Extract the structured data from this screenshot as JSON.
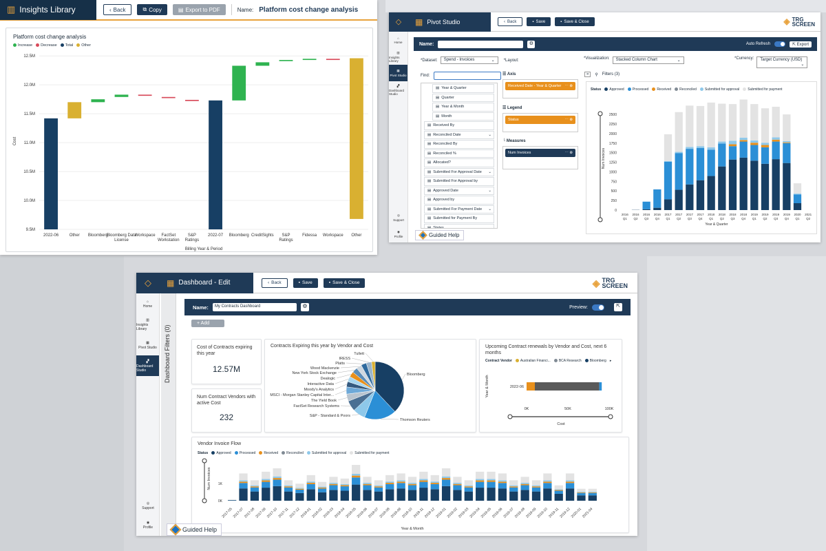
{
  "background": {
    "color": "#d6d8dc"
  },
  "insights": {
    "app_title": "Insights Library",
    "back": "Back",
    "copy": "Copy",
    "export_pdf": "Export to PDF",
    "name_label": "Name:",
    "name_value": "Platform cost change analysis",
    "chart_title": "Platform cost change analysis",
    "legend": [
      {
        "label": "Increase",
        "color": "#2fb350"
      },
      {
        "label": "Decrease",
        "color": "#d84a5a"
      },
      {
        "label": "Total",
        "color": "#173f64"
      },
      {
        "label": "Other",
        "color": "#d9b031"
      }
    ],
    "ylabel": "Cost",
    "xlabel": "Billing Year & Period"
  },
  "chart_data": [
    {
      "type": "bar",
      "title": "Platform cost change analysis",
      "subtitle": "waterfall",
      "xlabel": "Billing Year & Period",
      "ylabel": "Cost",
      "yticks": [
        "9.5M",
        "10.0M",
        "10.5M",
        "11.0M",
        "11.5M",
        "12.0M",
        "12.5M"
      ],
      "ylim": [
        9.5,
        12.55
      ],
      "categories": [
        "2022-06",
        "Other",
        "Bloomberg",
        "Bloomberg Data License",
        "Workspace",
        "FactSet Workstation",
        "S&P Ratings",
        "2022-07",
        "Bloomberg",
        "CreditSights",
        "S&P Ratings",
        "Fidessa",
        "Workspace",
        "Other"
      ],
      "kinds": [
        "total",
        "other",
        "increase",
        "increase",
        "decrease",
        "decrease",
        "decrease",
        "total",
        "increase",
        "increase",
        "increase",
        "increase",
        "decrease",
        "other"
      ],
      "ranges": [
        [
          9.5,
          11.42
        ],
        [
          11.42,
          11.7
        ],
        [
          11.7,
          11.75
        ],
        [
          11.79,
          11.83
        ],
        [
          11.81,
          11.83
        ],
        [
          11.77,
          11.79
        ],
        [
          11.72,
          11.74
        ],
        [
          9.5,
          11.73
        ],
        [
          11.73,
          12.33
        ],
        [
          12.33,
          12.39
        ],
        [
          12.41,
          12.43
        ],
        [
          12.43,
          12.45
        ],
        [
          12.43,
          12.45
        ],
        [
          9.68,
          12.46
        ]
      ]
    },
    {
      "type": "bar",
      "title": "",
      "xlabel": "Year & Quarter",
      "ylabel": "Num Invoices",
      "yticks": [
        "0",
        "250",
        "500",
        "750",
        "1000",
        "1250",
        "1500",
        "1750",
        "2000",
        "2250",
        "2500"
      ],
      "ylim": [
        0,
        2700
      ],
      "categories": [
        "2016 Q1",
        "2016 Q2",
        "2016 Q3",
        "2016 Q4",
        "2017 Q1",
        "2017 Q2",
        "2017 Q3",
        "2017 Q4",
        "2018 Q1",
        "2018 Q2",
        "2018 Q3",
        "2018 Q4",
        "2019 Q1",
        "2019 Q2",
        "2019 Q3",
        "2019 Q4",
        "2020 Q1",
        "2021 Q2"
      ],
      "series": [
        {
          "name": "Approved",
          "color": "#173f64",
          "values": [
            0,
            5,
            20,
            60,
            280,
            530,
            670,
            780,
            890,
            1140,
            1320,
            1370,
            1290,
            1210,
            1330,
            1230,
            180,
            0
          ]
        },
        {
          "name": "Processed",
          "color": "#2b8fd6",
          "values": [
            0,
            0,
            200,
            480,
            980,
            960,
            930,
            840,
            690,
            600,
            350,
            420,
            410,
            430,
            460,
            520,
            230,
            0
          ]
        },
        {
          "name": "Received",
          "color": "#e8901c",
          "values": [
            0,
            0,
            0,
            0,
            0,
            0,
            0,
            0,
            0,
            0,
            50,
            40,
            60,
            60,
            50,
            20,
            0,
            0
          ]
        },
        {
          "name": "Reconciled",
          "color": "#808a94",
          "values": [
            0,
            0,
            0,
            0,
            0,
            0,
            0,
            0,
            0,
            0,
            0,
            0,
            0,
            0,
            0,
            0,
            0,
            0
          ]
        },
        {
          "name": "Submitted for approval",
          "color": "#8ec8ea",
          "values": [
            0,
            0,
            0,
            0,
            20,
            30,
            50,
            50,
            60,
            50,
            90,
            60,
            60,
            60,
            60,
            30,
            20,
            0
          ]
        },
        {
          "name": "Submitted for payment",
          "color": "#e3e3e3",
          "values": [
            0,
            0,
            0,
            0,
            700,
            1040,
            1080,
            1050,
            1170,
            990,
            960,
            1000,
            950,
            900,
            800,
            700,
            270,
            0
          ]
        }
      ]
    },
    {
      "type": "pie",
      "title": "Contracts Expiring this year by Vendor and Cost",
      "labels": [
        "Bloomberg",
        "Thomson Reuters",
        "S&P - Standard & Poors",
        "FactSet Research Systems",
        "The Yield Book",
        "MSCI - Morgan Stanley Capital Inter...",
        "Moody's Analytics",
        "Interactive Data",
        "Dealogic",
        "New York Stock Exchange",
        "Wood Mackenzie",
        "Platts",
        "IRESS",
        "Tullett"
      ],
      "values": [
        38,
        18,
        7,
        6,
        4,
        4,
        3,
        3,
        3,
        3,
        3,
        3,
        3,
        2
      ],
      "colors": [
        "#173f64",
        "#2b8fd6",
        "#8ec8ea",
        "#4a6f93",
        "#b8c4cf",
        "#6ea9d8",
        "#345a80",
        "#a7d6ef",
        "#e8901c",
        "#5b8db8",
        "#cfd8e0",
        "#2e6a9e",
        "#9bb5cc",
        "#d9b031"
      ]
    },
    {
      "type": "bar",
      "title": "Upcoming Contract renewals by Vendor and Cost, next 6 months",
      "xlabel": "Cost",
      "ylabel": "Year & Month",
      "categories": [
        "2022-06"
      ],
      "xticks": [
        "0K",
        "50K",
        "100K"
      ],
      "xlim": [
        0,
        100
      ],
      "series": [
        {
          "name": "Australian Financi...",
          "color": "#d9b031",
          "values": [
            0
          ]
        },
        {
          "name": "BCA Research",
          "color": "#808a94",
          "values": [
            0
          ]
        },
        {
          "name": "Bloomberg",
          "color": "#173f64",
          "values": [
            0
          ]
        },
        {
          "name": "(orange)",
          "color": "#e8901c",
          "values": [
            10
          ]
        },
        {
          "name": "(gray)",
          "color": "#5a5a5a",
          "values": [
            78
          ]
        },
        {
          "name": "(blue)",
          "color": "#2b8fd6",
          "values": [
            3
          ]
        }
      ]
    },
    {
      "type": "bar",
      "title": "Vendor Invoice Flow",
      "xlabel": "Year & Month",
      "ylabel": "Num Invoices",
      "yticks": [
        "0K",
        "1K"
      ],
      "categories": [
        "2017-05",
        "2017-07",
        "2017-08",
        "2017-09",
        "2017-10",
        "2017-11",
        "2017-12",
        "2018-01",
        "2018-02",
        "2018-03",
        "2018-04",
        "2018-05",
        "2018-06",
        "2018-07",
        "2018-08",
        "2018-09",
        "2018-10",
        "2018-11",
        "2018-12",
        "2019-01",
        "2019-02",
        "2019-03",
        "2019-04",
        "2019-05",
        "2019-06",
        "2019-07",
        "2019-08",
        "2019-09",
        "2019-10",
        "2019-11",
        "2019-12",
        "2020-01",
        "2021-04"
      ],
      "totals": [
        60,
        1600,
        1200,
        1700,
        1900,
        1200,
        1000,
        1500,
        1100,
        1400,
        1300,
        2100,
        1400,
        1200,
        1500,
        1600,
        1400,
        1700,
        1500,
        1900,
        1400,
        1200,
        1700,
        1700,
        1600,
        1200,
        1400,
        1200,
        1600,
        900,
        1600,
        700,
        700
      ]
    }
  ],
  "pivot": {
    "app_title": "Pivot Studio",
    "back": "Back",
    "save": "Save",
    "save_close": "Save & Close",
    "brand1": "TRG",
    "brand2": "SCREEN",
    "nav": [
      "Home",
      "Insights Library",
      "Pivot Studio",
      "Dashboard Studio"
    ],
    "nav_bottom": [
      "Support",
      "Profile"
    ],
    "name_label": "Name:",
    "auto_refresh": "Auto Refresh",
    "export": "Export",
    "dataset_label": "*Dataset:",
    "dataset_value": "Spend - Invoices",
    "layout_label": "*Layout:",
    "viz_label": "*Visualization:",
    "viz_value": "Stacked Column Chart",
    "currency_label": "*Currency:",
    "currency_value": "Target Currency (USD)",
    "find_label": "Find:",
    "tree": [
      "Year & Quarter",
      "Quarter",
      "Year & Month",
      "Month",
      "Received By",
      "Reconciled Date",
      "Reconciled By",
      "Reconciled %",
      "Allocated?",
      "Submitted For Approval Date",
      "Submitted For Approval by",
      "Approved Date",
      "Approved by",
      "Submitted For Payment Date",
      "Submitted for Payment By",
      "States"
    ],
    "axis": "Axis",
    "axis_pill": "Received Date - Year & Quarter",
    "legend_h": "Legend",
    "legend_pill": "Status",
    "measures": "Measures",
    "measures_pill": "Num Invoices",
    "filters": "Filters (3)",
    "status_label": "Status",
    "guided": "Guided Help"
  },
  "dashboard": {
    "app_title": "Dashboard - Edit",
    "back": "Back",
    "save": "Save",
    "save_close": "Save & Close",
    "brand1": "TRG",
    "brand2": "SCREEN",
    "nav": [
      "Home",
      "Insights Library",
      "Pivot Studio",
      "Dashboard Studio"
    ],
    "nav_bottom": [
      "Support",
      "Profile"
    ],
    "filters_tab": "Dashboard Filters (0)",
    "name_label": "Name:",
    "name_value": "My Contracts Dashboard",
    "preview": "Preview:",
    "add": "+ Add",
    "kpi1_label": "Cost of Contracts expiring this year",
    "kpi1_value": "12.57M",
    "kpi2_label": "Num Contract Vendors with active Cost",
    "kpi2_value": "232",
    "pie_title": "Contracts Expiring this year by Vendor and Cost",
    "renew_title": "Upcoming Contract renewals by Vendor and Cost, next 6 months",
    "contract_vendor": "Contract Vendor",
    "renew_legend": [
      "Australian Financi...",
      "BCA Research",
      "Bloomberg"
    ],
    "flow_title": "Vendor Invoice Flow",
    "status_label": "Status",
    "status_legend": [
      "Approved",
      "Processed",
      "Received",
      "Reconciled",
      "Submitted for approval",
      "Submitted for payment"
    ],
    "guided": "Guided Help"
  }
}
